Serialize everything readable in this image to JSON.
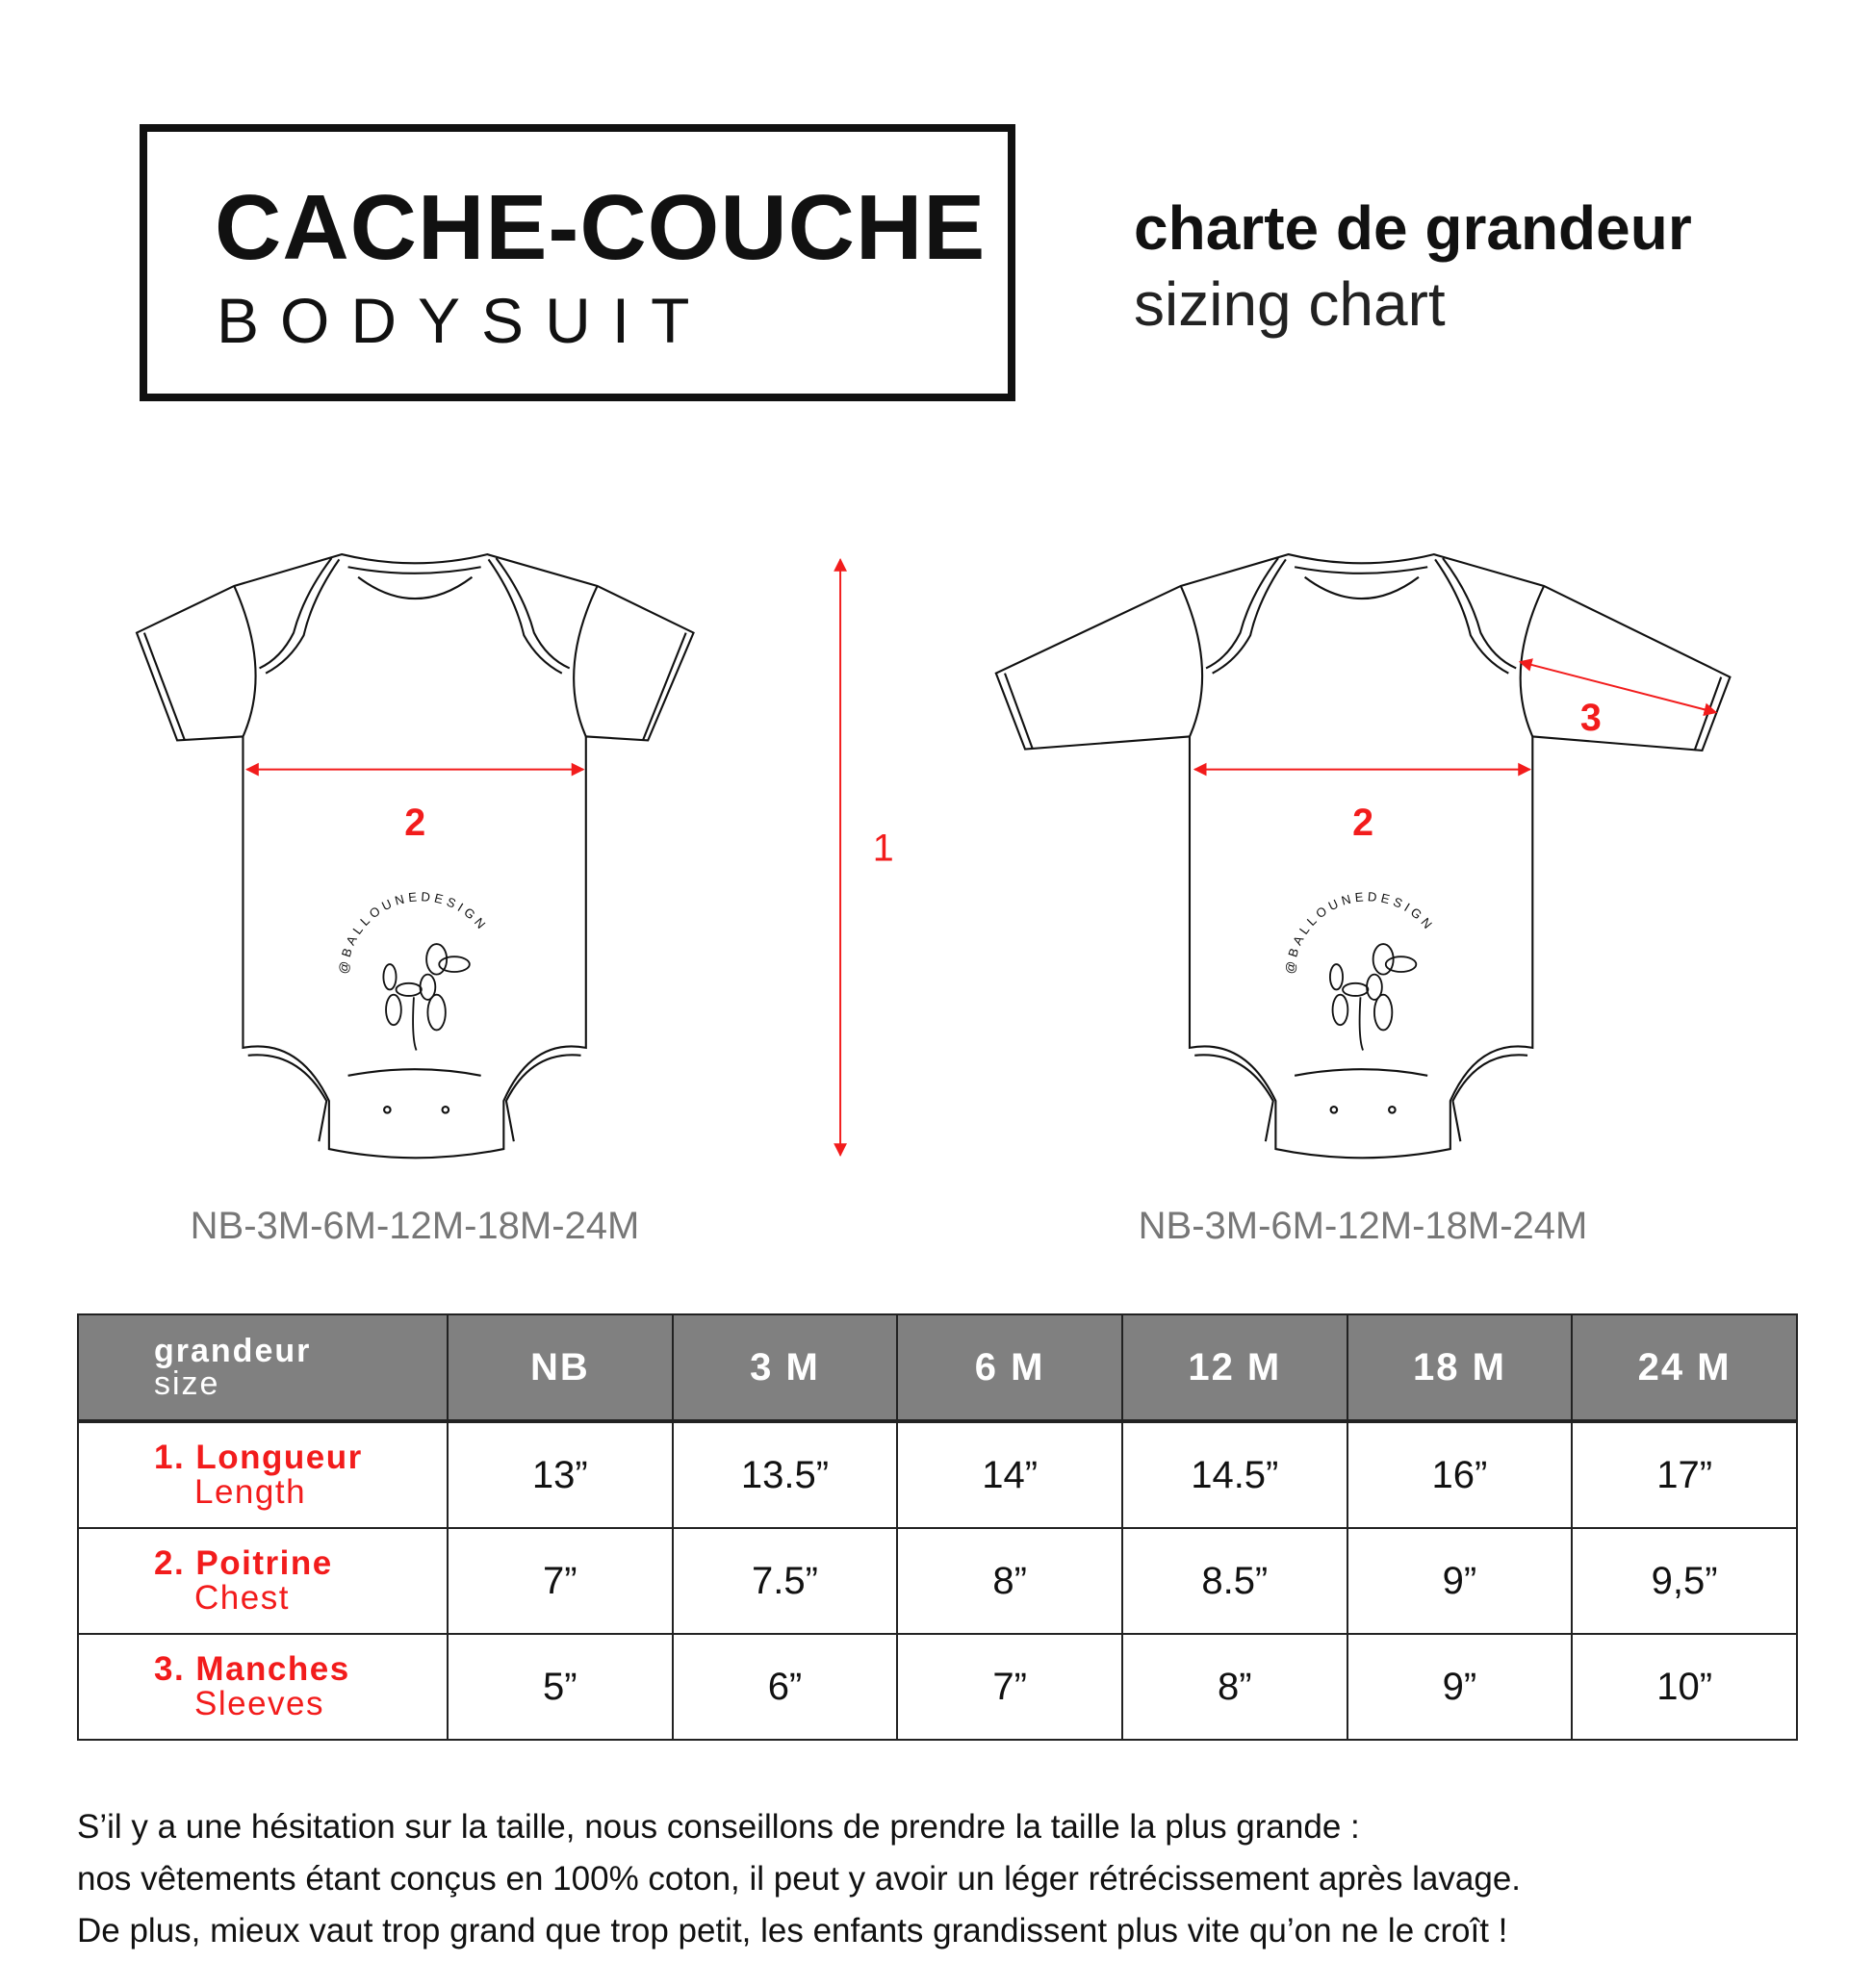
{
  "product": {
    "title_fr": "CACHE-COUCHE",
    "title_en": "BODYSUIT"
  },
  "chart": {
    "title_fr": "charte de grandeur",
    "title_en": "sizing chart"
  },
  "diagram": {
    "length_label": "1",
    "chest_label_left": "2",
    "chest_label_right": "2",
    "sleeve_label": "3",
    "logo_text": "@BALLOUNEDESIGN",
    "size_range_left": "NB-3M-6M-12M-18M-24M",
    "size_range_right": "NB-3M-6M-12M-18M-24M",
    "accent_color": "#f21c1c"
  },
  "table": {
    "header_fr": "grandeur",
    "header_en": "size",
    "header_color": "#808080",
    "sizes": [
      "NB",
      "3 M",
      "6 M",
      "12 M",
      "18 M",
      "24 M"
    ],
    "rows": [
      {
        "label_fr": "1. Longueur",
        "label_en": "Length",
        "values": [
          "13”",
          "13.5”",
          "14”",
          "14.5”",
          "16”",
          "17”"
        ]
      },
      {
        "label_fr": "2. Poitrine",
        "label_en": "Chest",
        "values": [
          "7”",
          "7.5”",
          "8”",
          "8.5”",
          "9”",
          "9,5”"
        ]
      },
      {
        "label_fr": "3. Manches",
        "label_en": "Sleeves",
        "values": [
          "5”",
          "6”",
          "7”",
          "8”",
          "9”",
          "10”"
        ]
      }
    ]
  },
  "note": [
    "S’il y a une hésitation sur la taille, nous conseillons de prendre la taille la plus grande :",
    "nos vêtements étant conçus en 100% coton, il peut y avoir un léger rétrécissement après lavage.",
    "De plus, mieux vaut trop grand que trop petit, les enfants grandissent plus vite qu’on ne le croît !"
  ]
}
